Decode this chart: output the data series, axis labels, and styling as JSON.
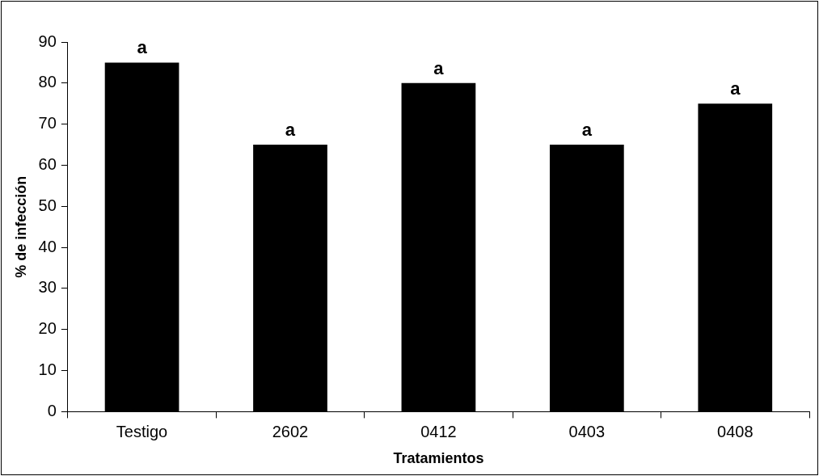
{
  "chart_data": {
    "type": "bar",
    "xlabel": "Tratamientos",
    "ylabel": "% de infección",
    "categories": [
      "Testigo",
      "2602",
      "0412",
      "0403",
      "0408"
    ],
    "values": [
      85,
      65,
      80,
      65,
      75
    ],
    "color": "#000000",
    "ylim": [
      0,
      90
    ],
    "yticks": [
      0,
      10,
      20,
      30,
      40,
      50,
      60,
      70,
      80,
      90
    ],
    "grid": false,
    "legend": false,
    "annotations": [
      {
        "text": "a",
        "x": "Testigo",
        "y": 85
      },
      {
        "text": "a",
        "x": "2602",
        "y": 65
      },
      {
        "text": "a",
        "x": "0412",
        "y": 80
      },
      {
        "text": "a",
        "x": "0403",
        "y": 65
      },
      {
        "text": "a",
        "x": "0408",
        "y": 75
      }
    ]
  }
}
